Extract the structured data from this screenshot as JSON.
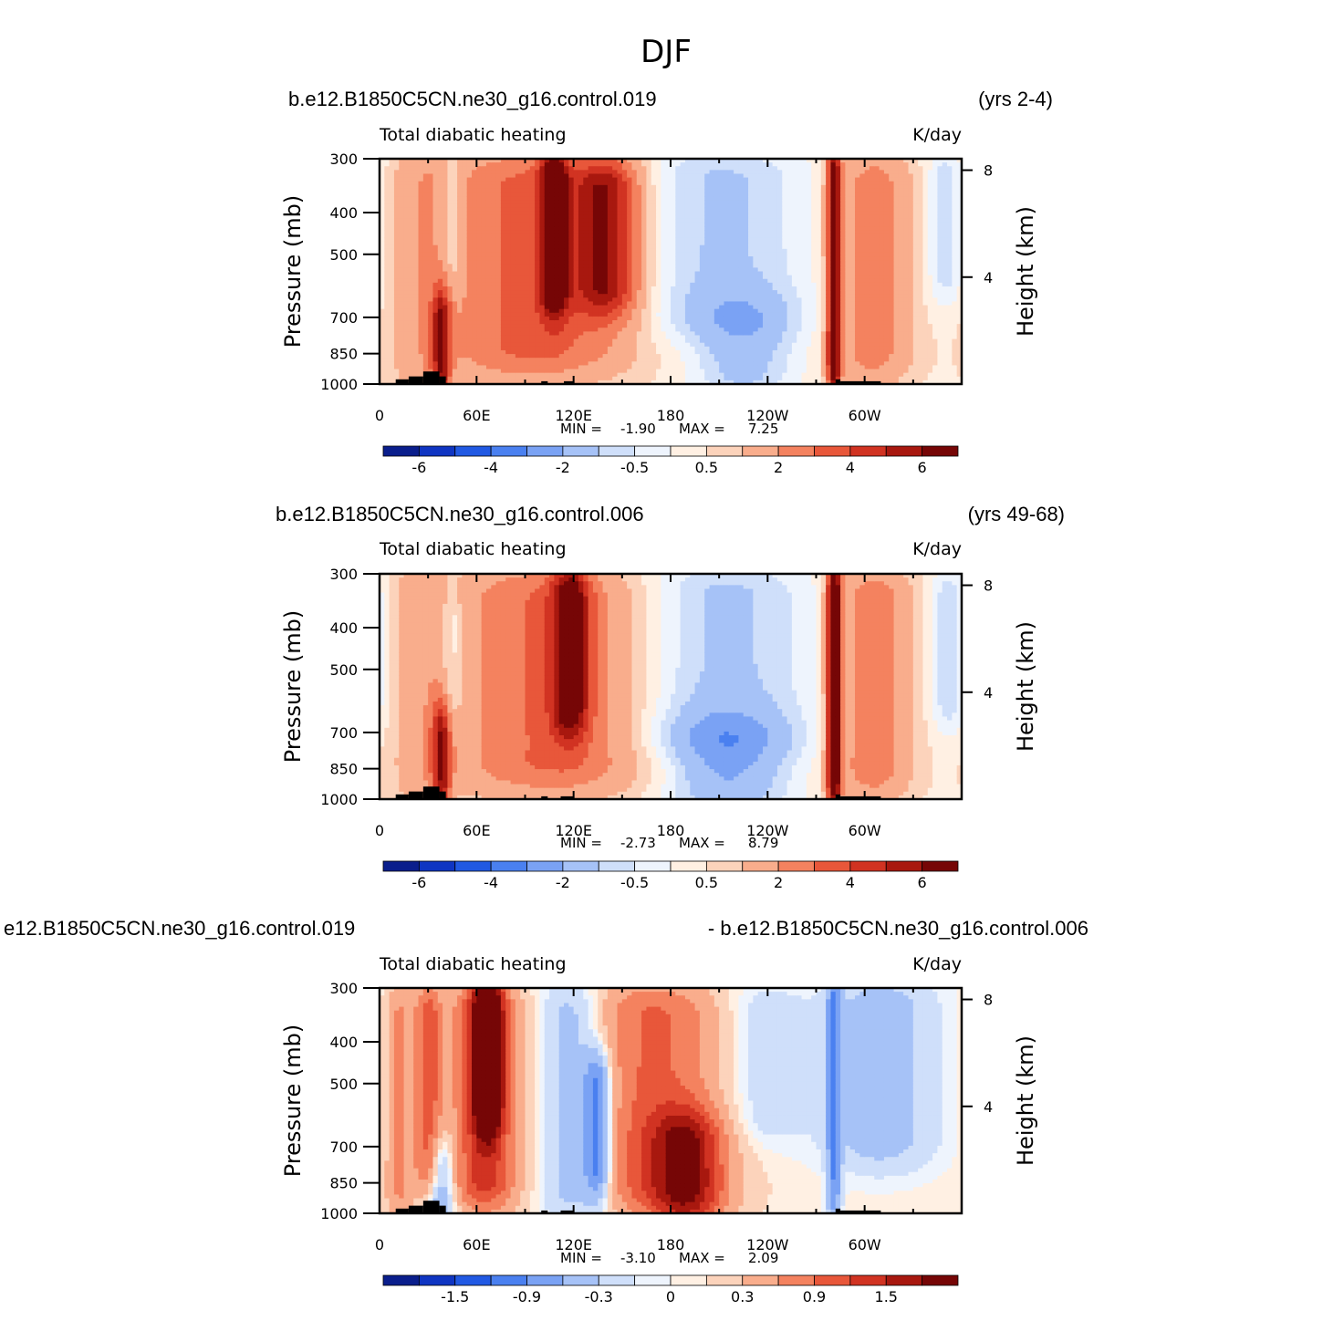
{
  "page": {
    "title": "DJF"
  },
  "colors": {
    "background": "#ffffff",
    "frame": "#000000",
    "terrain": "#000000",
    "scale": [
      "#0a1e8c",
      "#0f35c2",
      "#2159e3",
      "#4a80f0",
      "#7aa2f4",
      "#a6c2f7",
      "#cfdffa",
      "#eef4fd",
      "#fff0e3",
      "#fcd3bb",
      "#f9ad8c",
      "#f4825f",
      "#e8573a",
      "#d13322",
      "#a8180f",
      "#760606"
    ]
  },
  "panels": [
    {
      "case_left": "b.e12.B1850C5CN.ne30_g16.control.019",
      "case_right": "(yrs 2-4)",
      "field": "Total diabatic heating",
      "units": "K/day",
      "stats": {
        "min_label": "MIN =",
        "min_value": "-1.90",
        "max_label": "MAX =",
        "max_value": "7.25"
      },
      "colorbar_labels": [
        "-6",
        "-4",
        "-2",
        "-0.5",
        "0.5",
        "2",
        "4",
        "6"
      ]
    },
    {
      "case_left": "b.e12.B1850C5CN.ne30_g16.control.006",
      "case_right": "(yrs 49-68)",
      "field": "Total diabatic heating",
      "units": "K/day",
      "stats": {
        "min_label": "MIN =",
        "min_value": "-2.73",
        "max_label": "MAX =",
        "max_value": "8.79"
      },
      "colorbar_labels": [
        "-6",
        "-4",
        "-2",
        "-0.5",
        "0.5",
        "2",
        "4",
        "6"
      ]
    },
    {
      "case_left": "e12.B1850C5CN.ne30_g16.control.019",
      "case_right": "- b.e12.B1850C5CN.ne30_g16.control.006",
      "field": "Total diabatic heating",
      "units": "K/day",
      "stats": {
        "min_label": "MIN =",
        "min_value": "-3.10",
        "max_label": "MAX =",
        "max_value": "2.09"
      },
      "colorbar_labels": [
        "-1.5",
        "-0.9",
        "-0.3",
        "0",
        "0.3",
        "0.9",
        "1.5"
      ]
    }
  ],
  "chart_data": [
    {
      "type": "heatmap",
      "title": "Total diabatic heating",
      "xlabel": "",
      "ylabel": "Pressure (mb)",
      "y2label": "Height (km)",
      "xticks": [
        "0",
        "60E",
        "120E",
        "180",
        "120W",
        "60W"
      ],
      "xlim": [
        0,
        360
      ],
      "yticks": [
        "300",
        "400",
        "500",
        "700",
        "850",
        "1000"
      ],
      "ylim": [
        1000,
        300
      ],
      "y2ticks": [
        "8",
        "4"
      ],
      "levels": [
        -6,
        -5,
        -4,
        -3,
        -2,
        -1,
        -0.5,
        0,
        0.5,
        1,
        2,
        3,
        4,
        5,
        6
      ],
      "min": -1.9,
      "max": 7.25,
      "features": [
        {
          "lon": 26,
          "lon_width": 12,
          "p_top": 300,
          "p_bottom": 1000,
          "value": 1.0
        },
        {
          "lon": 38,
          "lon_width": 4,
          "p_top": 720,
          "p_bottom": 980,
          "value": 4.5
        },
        {
          "lon": 45,
          "lon_width": 5,
          "p_top": 360,
          "p_bottom": 520,
          "value": -1.2
        },
        {
          "lon": 95,
          "lon_width": 40,
          "p_top": 320,
          "p_bottom": 880,
          "value": 3.0
        },
        {
          "lon": 108,
          "lon_width": 6,
          "p_top": 320,
          "p_bottom": 600,
          "value": 5.5
        },
        {
          "lon": 140,
          "lon_width": 14,
          "p_top": 350,
          "p_bottom": 600,
          "value": 4.5
        },
        {
          "lon": 210,
          "lon_width": 38,
          "p_top": 320,
          "p_bottom": 700,
          "value": -1.5
        },
        {
          "lon": 225,
          "lon_width": 22,
          "p_top": 760,
          "p_bottom": 900,
          "value": -1.6
        },
        {
          "lon": 281,
          "lon_width": 3,
          "p_top": 300,
          "p_bottom": 980,
          "value": 6.8
        },
        {
          "lon": 305,
          "lon_width": 16,
          "p_top": 320,
          "p_bottom": 900,
          "value": 2.2
        },
        {
          "lon": 350,
          "lon_width": 8,
          "p_top": 330,
          "p_bottom": 560,
          "value": -1.2
        }
      ],
      "terrain": [
        {
          "lon_start": 10,
          "lon_end": 18,
          "p_top": 975
        },
        {
          "lon_start": 18,
          "lon_end": 27,
          "p_top": 960
        },
        {
          "lon_start": 27,
          "lon_end": 37,
          "p_top": 935
        },
        {
          "lon_start": 37,
          "lon_end": 41,
          "p_top": 960
        },
        {
          "lon_start": 100,
          "lon_end": 104,
          "p_top": 985
        },
        {
          "lon_start": 114,
          "lon_end": 120,
          "p_top": 985
        },
        {
          "lon_start": 282,
          "lon_end": 285,
          "p_top": 975
        },
        {
          "lon_start": 285,
          "lon_end": 310,
          "p_top": 985
        }
      ]
    },
    {
      "type": "heatmap",
      "title": "Total diabatic heating",
      "xlabel": "",
      "ylabel": "Pressure (mb)",
      "y2label": "Height (km)",
      "xticks": [
        "0",
        "60E",
        "120E",
        "180",
        "120W",
        "60W"
      ],
      "xlim": [
        0,
        360
      ],
      "yticks": [
        "300",
        "400",
        "500",
        "700",
        "850",
        "1000"
      ],
      "ylim": [
        1000,
        300
      ],
      "y2ticks": [
        "8",
        "4"
      ],
      "levels": [
        -6,
        -5,
        -4,
        -3,
        -2,
        -1,
        -0.5,
        0,
        0.5,
        1,
        2,
        3,
        4,
        5,
        6
      ],
      "min": -2.73,
      "max": 8.79,
      "features": [
        {
          "lon": 26,
          "lon_width": 12,
          "p_top": 300,
          "p_bottom": 1000,
          "value": 1.0
        },
        {
          "lon": 38,
          "lon_width": 4,
          "p_top": 720,
          "p_bottom": 980,
          "value": 4.5
        },
        {
          "lon": 45,
          "lon_width": 5,
          "p_top": 380,
          "p_bottom": 560,
          "value": -1.2
        },
        {
          "lon": 105,
          "lon_width": 42,
          "p_top": 320,
          "p_bottom": 880,
          "value": 2.8
        },
        {
          "lon": 118,
          "lon_width": 8,
          "p_top": 330,
          "p_bottom": 620,
          "value": 5.0
        },
        {
          "lon": 210,
          "lon_width": 40,
          "p_top": 320,
          "p_bottom": 720,
          "value": -1.6
        },
        {
          "lon": 215,
          "lon_width": 26,
          "p_top": 780,
          "p_bottom": 900,
          "value": -2.2
        },
        {
          "lon": 281,
          "lon_width": 3,
          "p_top": 300,
          "p_bottom": 980,
          "value": 7.5
        },
        {
          "lon": 305,
          "lon_width": 16,
          "p_top": 320,
          "p_bottom": 900,
          "value": 2.4
        },
        {
          "lon": 352,
          "lon_width": 8,
          "p_top": 340,
          "p_bottom": 600,
          "value": -1.3
        }
      ],
      "terrain": [
        {
          "lon_start": 10,
          "lon_end": 18,
          "p_top": 975
        },
        {
          "lon_start": 18,
          "lon_end": 27,
          "p_top": 960
        },
        {
          "lon_start": 27,
          "lon_end": 37,
          "p_top": 935
        },
        {
          "lon_start": 37,
          "lon_end": 41,
          "p_top": 960
        },
        {
          "lon_start": 100,
          "lon_end": 104,
          "p_top": 985
        },
        {
          "lon_start": 112,
          "lon_end": 120,
          "p_top": 985
        },
        {
          "lon_start": 282,
          "lon_end": 285,
          "p_top": 975
        },
        {
          "lon_start": 285,
          "lon_end": 310,
          "p_top": 985
        }
      ]
    },
    {
      "type": "heatmap",
      "title": "Total diabatic heating",
      "xlabel": "",
      "ylabel": "Pressure (mb)",
      "y2label": "Height (km)",
      "xticks": [
        "0",
        "60E",
        "120E",
        "180",
        "120W",
        "60W"
      ],
      "xlim": [
        0,
        360
      ],
      "yticks": [
        "300",
        "400",
        "500",
        "700",
        "850",
        "1000"
      ],
      "ylim": [
        1000,
        300
      ],
      "y2ticks": [
        "8",
        "4"
      ],
      "levels": [
        -1.8,
        -1.5,
        -1.2,
        -0.9,
        -0.6,
        -0.3,
        -0.1,
        0,
        0.1,
        0.3,
        0.6,
        0.9,
        1.2,
        1.5,
        1.8
      ],
      "min": -3.1,
      "max": 2.09,
      "features": [
        {
          "lon": 12,
          "lon_width": 6,
          "p_top": 320,
          "p_bottom": 950,
          "value": 0.6
        },
        {
          "lon": 30,
          "lon_width": 6,
          "p_top": 330,
          "p_bottom": 800,
          "value": 1.0
        },
        {
          "lon": 38,
          "lon_width": 6,
          "p_top": 800,
          "p_bottom": 1000,
          "value": -0.8
        },
        {
          "lon": 65,
          "lon_width": 14,
          "p_top": 320,
          "p_bottom": 900,
          "value": 1.3
        },
        {
          "lon": 67,
          "lon_width": 6,
          "p_top": 320,
          "p_bottom": 560,
          "value": 1.9
        },
        {
          "lon": 120,
          "lon_width": 14,
          "p_top": 320,
          "p_bottom": 950,
          "value": -0.6
        },
        {
          "lon": 135,
          "lon_width": 6,
          "p_top": 500,
          "p_bottom": 780,
          "value": -1.1
        },
        {
          "lon": 170,
          "lon_width": 30,
          "p_top": 320,
          "p_bottom": 920,
          "value": 0.9
        },
        {
          "lon": 190,
          "lon_width": 16,
          "p_top": 700,
          "p_bottom": 900,
          "value": 1.3
        },
        {
          "lon": 235,
          "lon_width": 20,
          "p_top": 340,
          "p_bottom": 600,
          "value": -0.3
        },
        {
          "lon": 281,
          "lon_width": 3,
          "p_top": 300,
          "p_bottom": 980,
          "value": -0.9
        },
        {
          "lon": 310,
          "lon_width": 24,
          "p_top": 320,
          "p_bottom": 700,
          "value": -0.5
        }
      ],
      "terrain": [
        {
          "lon_start": 10,
          "lon_end": 18,
          "p_top": 975
        },
        {
          "lon_start": 18,
          "lon_end": 27,
          "p_top": 960
        },
        {
          "lon_start": 27,
          "lon_end": 37,
          "p_top": 935
        },
        {
          "lon_start": 37,
          "lon_end": 41,
          "p_top": 960
        },
        {
          "lon_start": 100,
          "lon_end": 104,
          "p_top": 985
        },
        {
          "lon_start": 112,
          "lon_end": 120,
          "p_top": 985
        },
        {
          "lon_start": 282,
          "lon_end": 285,
          "p_top": 975
        },
        {
          "lon_start": 285,
          "lon_end": 310,
          "p_top": 985
        }
      ]
    }
  ]
}
